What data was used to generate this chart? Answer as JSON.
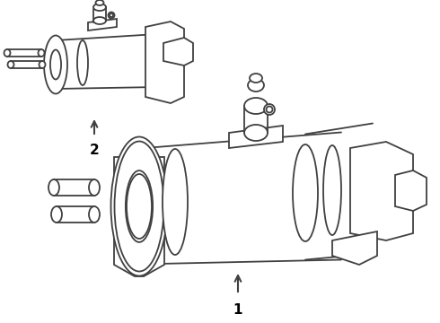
{
  "background_color": "#ffffff",
  "line_color": "#404040",
  "lw": 1.3,
  "figsize": [
    4.9,
    3.6
  ],
  "dpi": 100,
  "label1": "1",
  "label2": "2",
  "label_fontsize": 11
}
